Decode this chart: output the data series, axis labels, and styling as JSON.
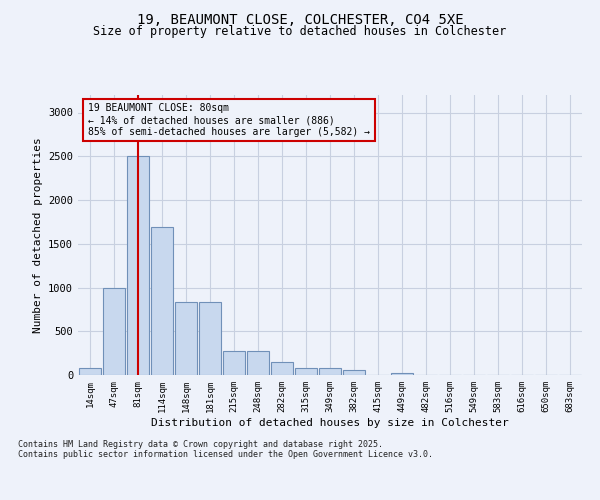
{
  "title_line1": "19, BEAUMONT CLOSE, COLCHESTER, CO4 5XE",
  "title_line2": "Size of property relative to detached houses in Colchester",
  "xlabel": "Distribution of detached houses by size in Colchester",
  "ylabel": "Number of detached properties",
  "footnote": "Contains HM Land Registry data © Crown copyright and database right 2025.\nContains public sector information licensed under the Open Government Licence v3.0.",
  "annotation_text": "19 BEAUMONT CLOSE: 80sqm\n← 14% of detached houses are smaller (886)\n85% of semi-detached houses are larger (5,582) →",
  "bar_color": "#c8d8ee",
  "bar_edge_color": "#7090b8",
  "grid_color": "#c8d0e0",
  "marker_line_color": "#cc0000",
  "annotation_box_color": "#cc0000",
  "background_color": "#eef2fa",
  "categories": [
    "14sqm",
    "47sqm",
    "81sqm",
    "114sqm",
    "148sqm",
    "181sqm",
    "215sqm",
    "248sqm",
    "282sqm",
    "315sqm",
    "349sqm",
    "382sqm",
    "415sqm",
    "449sqm",
    "482sqm",
    "516sqm",
    "549sqm",
    "583sqm",
    "616sqm",
    "650sqm",
    "683sqm"
  ],
  "values": [
    75,
    1000,
    2500,
    1690,
    840,
    840,
    270,
    270,
    150,
    80,
    75,
    55,
    0,
    25,
    0,
    0,
    0,
    0,
    0,
    0,
    0
  ],
  "ylim": [
    0,
    3200
  ],
  "yticks": [
    0,
    500,
    1000,
    1500,
    2000,
    2500,
    3000
  ],
  "marker_bin_index": 2,
  "fig_width": 6.0,
  "fig_height": 5.0,
  "dpi": 100
}
